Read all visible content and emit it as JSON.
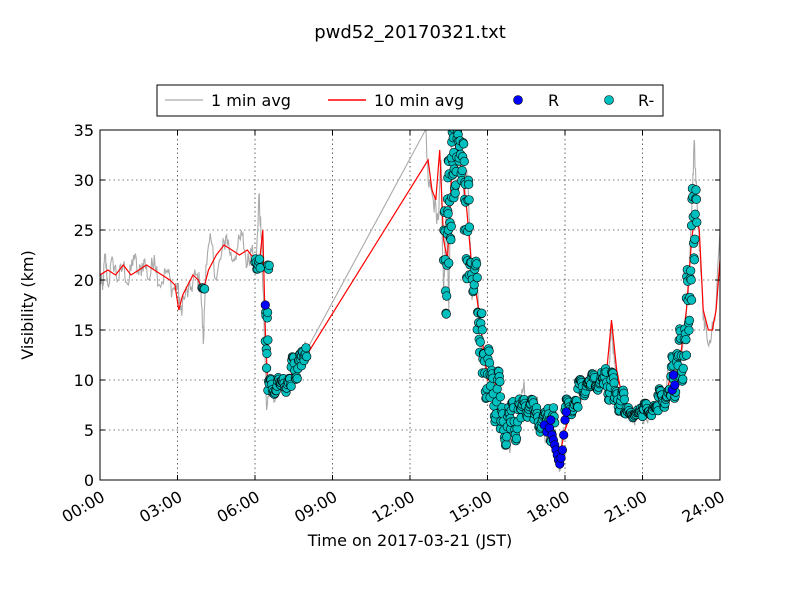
{
  "chart_data": {
    "type": "line",
    "title": "pwd52_20170321.txt",
    "xlabel": "Time on 2017-03-21 (JST)",
    "ylabel": "Visibility (km)",
    "xlim_hours": [
      0,
      24
    ],
    "ylim": [
      0,
      35
    ],
    "grid": true,
    "legend_placement": "top-center, above plot",
    "x_ticks": [
      {
        "h": 0,
        "label": "00:00"
      },
      {
        "h": 3,
        "label": "03:00"
      },
      {
        "h": 6,
        "label": "06:00"
      },
      {
        "h": 9,
        "label": "09:00"
      },
      {
        "h": 12,
        "label": "12:00"
      },
      {
        "h": 15,
        "label": "15:00"
      },
      {
        "h": 18,
        "label": "18:00"
      },
      {
        "h": 21,
        "label": "21:00"
      },
      {
        "h": 24,
        "label": "24:00"
      }
    ],
    "y_ticks": [
      0,
      5,
      10,
      15,
      20,
      25,
      30,
      35
    ],
    "series": [
      {
        "name": "1 min avg",
        "kind": "line",
        "color": "#aaaaaa",
        "points": [
          [
            0,
            20.5
          ],
          [
            0.1,
            19.0
          ],
          [
            0.2,
            22.5
          ],
          [
            0.3,
            19.5
          ],
          [
            0.5,
            22.0
          ],
          [
            0.7,
            20.0
          ],
          [
            0.9,
            21.5
          ],
          [
            1.1,
            19.5
          ],
          [
            1.3,
            22.5
          ],
          [
            1.5,
            20.5
          ],
          [
            1.7,
            22.0
          ],
          [
            1.9,
            20.0
          ],
          [
            2.1,
            22.5
          ],
          [
            2.3,
            19.5
          ],
          [
            2.6,
            21.0
          ],
          [
            2.8,
            19.0
          ],
          [
            3.0,
            19.5
          ],
          [
            3.1,
            17.0
          ],
          [
            3.3,
            18.5
          ],
          [
            3.5,
            19.0
          ],
          [
            3.7,
            20.5
          ],
          [
            3.9,
            19.5
          ],
          [
            4.0,
            13.6
          ],
          [
            4.1,
            21.5
          ],
          [
            4.3,
            24.0
          ],
          [
            4.5,
            20.0
          ],
          [
            4.7,
            22.5
          ],
          [
            4.9,
            24.5
          ],
          [
            5.1,
            22.0
          ],
          [
            5.3,
            23.0
          ],
          [
            5.5,
            24.5
          ],
          [
            5.7,
            21.5
          ],
          [
            5.9,
            23.5
          ],
          [
            6.05,
            21.5
          ],
          [
            6.15,
            28.5
          ],
          [
            6.25,
            24.0
          ],
          [
            6.35,
            16.0
          ],
          [
            6.45,
            7.0
          ],
          [
            6.6,
            9.5
          ],
          [
            6.8,
            8.5
          ],
          [
            7.0,
            10.0
          ],
          [
            7.2,
            8.5
          ],
          [
            7.4,
            10.5
          ],
          [
            7.6,
            11.5
          ],
          [
            7.8,
            12.5
          ],
          [
            8.0,
            13.0
          ],
          [
            12.6,
            35.0
          ],
          [
            12.7,
            30.0
          ],
          [
            12.9,
            28.0
          ],
          [
            13.1,
            26.0
          ],
          [
            13.2,
            32.0
          ],
          [
            13.3,
            18.0
          ],
          [
            13.4,
            27.0
          ],
          [
            13.5,
            17.0
          ],
          [
            13.6,
            34.0
          ],
          [
            13.8,
            35.0
          ],
          [
            13.9,
            30.0
          ],
          [
            14.0,
            33.0
          ],
          [
            14.1,
            28.0
          ],
          [
            14.2,
            31.0
          ],
          [
            14.3,
            26.0
          ],
          [
            14.4,
            18.0
          ],
          [
            14.6,
            20.0
          ],
          [
            14.7,
            14.0
          ],
          [
            14.9,
            13.0
          ],
          [
            15.0,
            9.0
          ],
          [
            15.2,
            11.0
          ],
          [
            15.4,
            10.0
          ],
          [
            15.6,
            6.0
          ],
          [
            15.8,
            3.5
          ],
          [
            16.0,
            4.0
          ],
          [
            16.2,
            6.0
          ],
          [
            16.4,
            9.5
          ],
          [
            16.5,
            7.0
          ],
          [
            16.7,
            7.5
          ],
          [
            16.9,
            8.0
          ],
          [
            17.1,
            5.5
          ],
          [
            17.3,
            4.5
          ],
          [
            17.5,
            6.0
          ],
          [
            17.7,
            3.0
          ],
          [
            17.8,
            1.5
          ],
          [
            17.9,
            4.0
          ],
          [
            18.1,
            7.5
          ],
          [
            18.3,
            7.0
          ],
          [
            18.5,
            7.5
          ],
          [
            18.7,
            9.0
          ],
          [
            18.9,
            10.0
          ],
          [
            19.1,
            10.5
          ],
          [
            19.3,
            9.5
          ],
          [
            19.5,
            9.0
          ],
          [
            19.7,
            11.0
          ],
          [
            19.8,
            16.0
          ],
          [
            19.9,
            12.5
          ],
          [
            20.0,
            10.0
          ],
          [
            20.2,
            8.0
          ],
          [
            20.4,
            7.0
          ],
          [
            20.6,
            6.5
          ],
          [
            20.8,
            6.5
          ],
          [
            21.0,
            6.5
          ],
          [
            21.3,
            7.0
          ],
          [
            21.5,
            7.5
          ],
          [
            21.7,
            8.5
          ],
          [
            21.9,
            8.0
          ],
          [
            22.0,
            11.0
          ],
          [
            22.2,
            12.0
          ],
          [
            22.4,
            11.0
          ],
          [
            22.6,
            14.0
          ],
          [
            22.8,
            20.0
          ],
          [
            22.9,
            26.0
          ],
          [
            23.0,
            34.0
          ],
          [
            23.1,
            28.0
          ],
          [
            23.25,
            21.0
          ],
          [
            23.4,
            15.0
          ],
          [
            23.6,
            14.0
          ],
          [
            23.8,
            16.0
          ],
          [
            24.0,
            25.0
          ]
        ]
      },
      {
        "name": "10 min avg",
        "kind": "line",
        "color": "#ff0000",
        "points": [
          [
            0,
            20.5
          ],
          [
            0.3,
            21.0
          ],
          [
            0.6,
            20.5
          ],
          [
            0.9,
            21.5
          ],
          [
            1.2,
            20.5
          ],
          [
            1.5,
            21.0
          ],
          [
            1.8,
            21.5
          ],
          [
            2.1,
            21.0
          ],
          [
            2.4,
            20.5
          ],
          [
            2.7,
            20.0
          ],
          [
            2.9,
            19.5
          ],
          [
            3.05,
            17.0
          ],
          [
            3.2,
            18.5
          ],
          [
            3.4,
            19.5
          ],
          [
            3.6,
            20.5
          ],
          [
            3.8,
            20.0
          ],
          [
            4.0,
            19.0
          ],
          [
            4.2,
            21.0
          ],
          [
            4.5,
            22.5
          ],
          [
            4.8,
            23.5
          ],
          [
            5.1,
            23.0
          ],
          [
            5.4,
            22.5
          ],
          [
            5.7,
            23.0
          ],
          [
            6.0,
            22.0
          ],
          [
            6.2,
            22.5
          ],
          [
            6.3,
            25.0
          ],
          [
            6.4,
            15.0
          ],
          [
            6.5,
            9.0
          ],
          [
            6.7,
            9.5
          ],
          [
            7.0,
            9.5
          ],
          [
            7.3,
            10.0
          ],
          [
            7.6,
            11.5
          ],
          [
            8.0,
            12.5
          ],
          [
            12.7,
            32.0
          ],
          [
            12.85,
            29.0
          ],
          [
            13.0,
            28.0
          ],
          [
            13.15,
            33.0
          ],
          [
            13.3,
            24.0
          ],
          [
            13.45,
            22.0
          ],
          [
            13.6,
            30.0
          ],
          [
            13.8,
            34.0
          ],
          [
            14.0,
            31.0
          ],
          [
            14.2,
            27.0
          ],
          [
            14.4,
            21.0
          ],
          [
            14.6,
            18.0
          ],
          [
            14.8,
            14.0
          ],
          [
            15.0,
            10.0
          ],
          [
            15.2,
            10.5
          ],
          [
            15.4,
            9.0
          ],
          [
            15.6,
            6.0
          ],
          [
            15.8,
            4.5
          ],
          [
            16.0,
            4.5
          ],
          [
            16.2,
            6.0
          ],
          [
            16.4,
            7.5
          ],
          [
            16.6,
            7.5
          ],
          [
            16.8,
            7.0
          ],
          [
            17.0,
            6.0
          ],
          [
            17.2,
            5.0
          ],
          [
            17.4,
            5.0
          ],
          [
            17.6,
            4.0
          ],
          [
            17.8,
            2.5
          ],
          [
            18.0,
            5.0
          ],
          [
            18.2,
            6.5
          ],
          [
            18.4,
            7.0
          ],
          [
            18.6,
            8.0
          ],
          [
            18.8,
            9.5
          ],
          [
            19.0,
            10.0
          ],
          [
            19.3,
            9.5
          ],
          [
            19.6,
            10.5
          ],
          [
            19.8,
            16.0
          ],
          [
            20.0,
            11.0
          ],
          [
            20.2,
            8.5
          ],
          [
            20.4,
            7.0
          ],
          [
            20.7,
            6.5
          ],
          [
            21.0,
            6.5
          ],
          [
            21.3,
            7.0
          ],
          [
            21.6,
            7.5
          ],
          [
            21.9,
            8.5
          ],
          [
            22.1,
            10.5
          ],
          [
            22.3,
            11.5
          ],
          [
            22.5,
            13.0
          ],
          [
            22.7,
            17.0
          ],
          [
            22.9,
            24.0
          ],
          [
            23.05,
            27.0
          ],
          [
            23.2,
            25.0
          ],
          [
            23.35,
            17.0
          ],
          [
            23.55,
            15.0
          ],
          [
            23.7,
            15.0
          ],
          [
            23.85,
            17.0
          ],
          [
            24.0,
            22.0
          ]
        ]
      },
      {
        "name": "R",
        "kind": "scatter",
        "color": "#0000ff",
        "points": [
          [
            6.4,
            17.5
          ],
          [
            17.2,
            5.5
          ],
          [
            17.3,
            4.8
          ],
          [
            17.4,
            5.2
          ],
          [
            17.45,
            6.0
          ],
          [
            17.5,
            4.5
          ],
          [
            17.55,
            4.0
          ],
          [
            17.6,
            3.5
          ],
          [
            17.65,
            3.0
          ],
          [
            17.7,
            2.5
          ],
          [
            17.75,
            2.0
          ],
          [
            17.8,
            1.6
          ],
          [
            17.85,
            2.2
          ],
          [
            17.9,
            3.0
          ],
          [
            17.95,
            4.5
          ],
          [
            18.0,
            6.0
          ],
          [
            18.05,
            6.8
          ],
          [
            22.15,
            9.0
          ],
          [
            22.2,
            10.5
          ],
          [
            22.25,
            9.5
          ]
        ]
      },
      {
        "name": "R-",
        "kind": "scatter",
        "color": "#00bfbf",
        "clusters": [
          [
            3.95,
            4.05,
            19,
            19.5
          ],
          [
            6.0,
            6.2,
            21,
            22
          ],
          [
            6.4,
            6.5,
            11,
            17
          ],
          [
            6.5,
            6.55,
            20.8,
            21.6
          ],
          [
            6.5,
            7.0,
            8.5,
            10
          ],
          [
            7.0,
            7.4,
            9,
            10
          ],
          [
            7.4,
            7.8,
            10,
            12.5
          ],
          [
            7.8,
            8.0,
            12,
            13
          ],
          [
            13.3,
            13.5,
            16.5,
            27
          ],
          [
            13.45,
            13.7,
            24,
            32
          ],
          [
            13.6,
            13.9,
            29,
            35
          ],
          [
            13.9,
            14.1,
            30,
            34
          ],
          [
            14.1,
            14.3,
            20,
            30
          ],
          [
            14.3,
            14.6,
            19,
            22
          ],
          [
            14.6,
            14.8,
            13,
            17
          ],
          [
            14.8,
            15.1,
            8,
            13
          ],
          [
            15.1,
            15.5,
            6,
            11
          ],
          [
            15.5,
            15.9,
            3.5,
            7
          ],
          [
            15.9,
            16.3,
            4,
            8
          ],
          [
            16.3,
            16.8,
            6.5,
            8
          ],
          [
            16.8,
            17.3,
            5,
            7
          ],
          [
            17.3,
            17.6,
            4,
            7
          ],
          [
            18.0,
            18.5,
            6.5,
            8
          ],
          [
            18.5,
            19.0,
            8.5,
            10
          ],
          [
            19.0,
            19.5,
            9,
            10.5
          ],
          [
            19.5,
            19.9,
            8,
            11
          ],
          [
            19.9,
            20.3,
            7,
            9
          ],
          [
            20.3,
            21.0,
            6.3,
            7
          ],
          [
            21.0,
            21.6,
            6.5,
            7.5
          ],
          [
            21.6,
            22.1,
            7.5,
            9
          ],
          [
            22.1,
            22.4,
            8,
            12.5
          ],
          [
            22.4,
            22.7,
            10,
            15
          ],
          [
            22.7,
            22.9,
            15,
            21
          ],
          [
            22.9,
            23.1,
            22,
            29
          ]
        ]
      }
    ]
  }
}
